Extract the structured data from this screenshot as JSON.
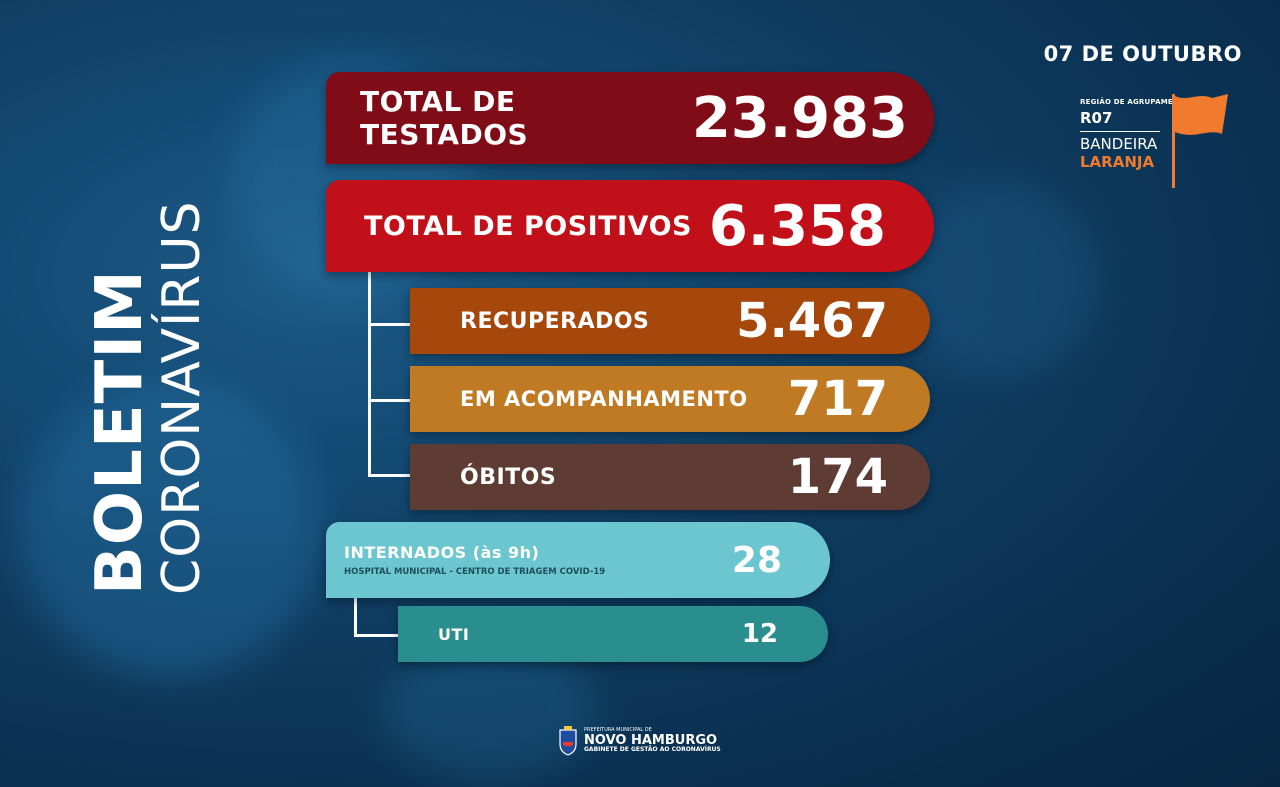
{
  "date": "07 DE OUTUBRO",
  "title_bold": "BOLETIM",
  "title_light": "CORONAVÍRUS",
  "region": {
    "caption": "REGIÃO DE AGRUPAMENTO",
    "code": "R07",
    "flag_word": "BANDEIRA",
    "flag_color_name": "LARANJA",
    "flag_color": "#f07a2e"
  },
  "testados": {
    "label": "TOTAL DE TESTADOS",
    "value": "23.983",
    "color": "#7f0c17"
  },
  "positivos": {
    "label": "TOTAL DE POSITIVOS",
    "value": "6.358",
    "color": "#c1101a"
  },
  "recuperados": {
    "label": "RECUPERADOS",
    "value": "5.467",
    "color": "#a6470c"
  },
  "acompanhamento": {
    "label": "EM ACOMPANHAMENTO",
    "value": "717",
    "color": "#c07a24"
  },
  "obitos": {
    "label": "ÓBITOS",
    "value": "174",
    "color": "#5e3c34"
  },
  "internados": {
    "label": "INTERNADOS (às 9h)",
    "sublabel": "HOSPITAL MUNICIPAL - CENTRO DE TRIAGEM COVID-19",
    "value": "28",
    "color": "#6cc6cf"
  },
  "uti": {
    "label": "UTI",
    "value": "12",
    "color": "#2a8e8f"
  },
  "logo": {
    "line1": "PREFEITURA MUNICIPAL DE",
    "line2": "NOVO HAMBURGO",
    "line3": "GABINETE DE GESTÃO AO CORONAVÍRUS"
  }
}
